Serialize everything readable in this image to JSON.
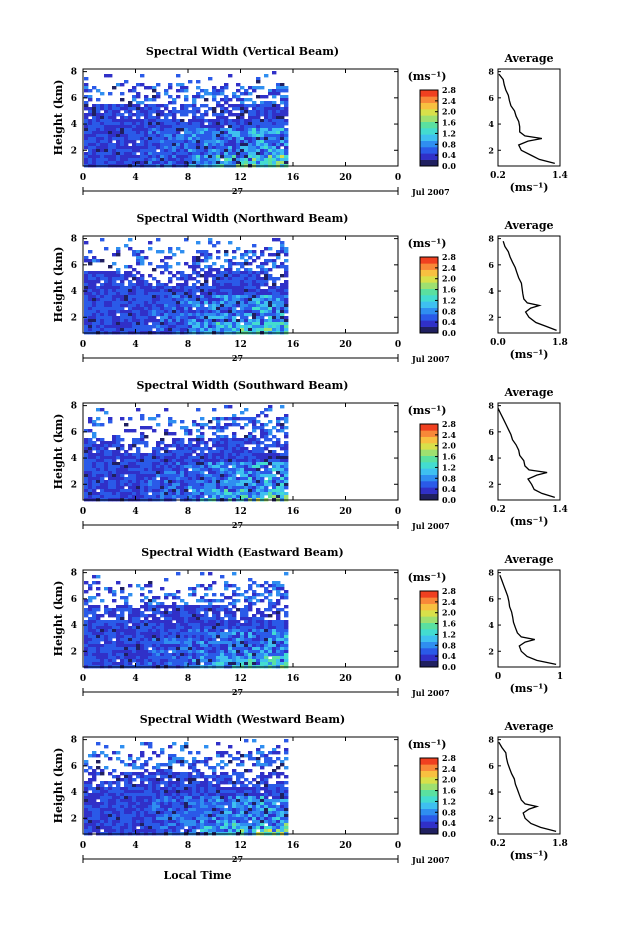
{
  "figure": {
    "common_xlabel": "Local Time",
    "date_day": "27",
    "date_month": "Jul 2007",
    "avg_xlabel": "(ms⁻¹)",
    "cbar_unit": "(ms⁻¹)",
    "avg_title": "Average"
  },
  "colormap": [
    "#202060",
    "#3030c8",
    "#2a5ae8",
    "#2f8ef0",
    "#3ec0f0",
    "#43dcd0",
    "#5ae0a0",
    "#9ee070",
    "#d8e04a",
    "#f8c040",
    "#f88838",
    "#f04020"
  ],
  "chart_data": [
    {
      "type": "heatmap",
      "title": "Spectral Width (Vertical Beam)",
      "ylabel": "Height (km)",
      "xlim": [
        0,
        24
      ],
      "ylim": [
        0.8,
        8.2
      ],
      "xticks": [
        "0",
        "4",
        "8",
        "12",
        "16",
        "20",
        "0"
      ],
      "yticks": [
        "2",
        "4",
        "6",
        "8"
      ],
      "colorbar": {
        "ticks": [
          "2.8",
          "2.4",
          "2.0",
          "1.6",
          "1.2",
          "0.8",
          "0.4",
          "0.0"
        ],
        "range": [
          0,
          2.8
        ]
      },
      "data_end_hour": 15.5,
      "average_profile": {
        "xlim": [
          0.2,
          1.4
        ],
        "xticks": [
          "0.2",
          "1.4"
        ],
        "ylim": [
          0.8,
          8.2
        ],
        "yticks": [
          "2",
          "4",
          "6",
          "8"
        ],
        "height": [
          1.0,
          1.3,
          1.6,
          2.0,
          2.4,
          2.7,
          2.9,
          3.1,
          3.4,
          3.8,
          4.2,
          4.6,
          5.0,
          5.4,
          5.8,
          6.2,
          6.6,
          7.0,
          7.4,
          7.8
        ],
        "value": [
          1.3,
          1.0,
          0.85,
          0.65,
          0.6,
          0.78,
          1.05,
          0.72,
          0.62,
          0.62,
          0.6,
          0.55,
          0.52,
          0.45,
          0.42,
          0.4,
          0.35,
          0.32,
          0.3,
          0.22
        ]
      }
    },
    {
      "type": "heatmap",
      "title": "Spectral Width (Northward Beam)",
      "ylabel": "Height (km)",
      "xlim": [
        0,
        24
      ],
      "ylim": [
        0.8,
        8.2
      ],
      "xticks": [
        "0",
        "4",
        "8",
        "12",
        "16",
        "20",
        "0"
      ],
      "yticks": [
        "2",
        "4",
        "6",
        "8"
      ],
      "colorbar": {
        "ticks": [
          "2.8",
          "2.4",
          "2.0",
          "1.6",
          "1.2",
          "0.8",
          "0.4",
          "0.0"
        ],
        "range": [
          0,
          2.8
        ]
      },
      "data_end_hour": 15.5,
      "average_profile": {
        "xlim": [
          0.0,
          1.8
        ],
        "xticks": [
          "0.0",
          "1.8"
        ],
        "ylim": [
          0.8,
          8.2
        ],
        "yticks": [
          "2",
          "4",
          "6",
          "8"
        ],
        "height": [
          1.0,
          1.3,
          1.6,
          2.0,
          2.4,
          2.7,
          2.9,
          3.1,
          3.4,
          3.8,
          4.2,
          4.6,
          5.0,
          5.4,
          5.8,
          6.2,
          6.6,
          7.0,
          7.4,
          7.8
        ],
        "value": [
          1.7,
          1.4,
          1.1,
          0.9,
          0.8,
          0.95,
          1.2,
          0.85,
          0.75,
          0.72,
          0.7,
          0.68,
          0.6,
          0.55,
          0.5,
          0.42,
          0.35,
          0.3,
          0.2,
          0.15
        ]
      }
    },
    {
      "type": "heatmap",
      "title": "Spectral Width (Southward Beam)",
      "ylabel": "Height (km)",
      "xlim": [
        0,
        24
      ],
      "ylim": [
        0.8,
        8.2
      ],
      "xticks": [
        "0",
        "4",
        "8",
        "12",
        "16",
        "20",
        "0"
      ],
      "yticks": [
        "2",
        "4",
        "6",
        "8"
      ],
      "colorbar": {
        "ticks": [
          "2.8",
          "2.4",
          "2.0",
          "1.6",
          "1.2",
          "0.8",
          "0.4",
          "0.0"
        ],
        "range": [
          0,
          2.8
        ]
      },
      "data_end_hour": 15.5,
      "average_profile": {
        "xlim": [
          0.2,
          1.4
        ],
        "xticks": [
          "0.2",
          "1.4"
        ],
        "ylim": [
          0.8,
          8.2
        ],
        "yticks": [
          "2",
          "4",
          "6",
          "8"
        ],
        "height": [
          1.0,
          1.3,
          1.6,
          2.0,
          2.4,
          2.7,
          2.9,
          3.1,
          3.4,
          3.8,
          4.2,
          4.6,
          5.0,
          5.4,
          5.8,
          6.2,
          6.6,
          7.0,
          7.4,
          7.8
        ],
        "value": [
          1.3,
          1.05,
          0.9,
          0.85,
          0.78,
          0.95,
          1.15,
          0.8,
          0.72,
          0.7,
          0.62,
          0.6,
          0.55,
          0.48,
          0.45,
          0.4,
          0.35,
          0.3,
          0.25,
          0.2
        ]
      }
    },
    {
      "type": "heatmap",
      "title": "Spectral Width (Eastward Beam)",
      "ylabel": "Height (km)",
      "xlim": [
        0,
        24
      ],
      "ylim": [
        0.8,
        8.2
      ],
      "xticks": [
        "0",
        "4",
        "8",
        "12",
        "16",
        "20",
        "0"
      ],
      "yticks": [
        "2",
        "4",
        "6",
        "8"
      ],
      "colorbar": {
        "ticks": [
          "2.8",
          "2.4",
          "2.0",
          "1.6",
          "1.2",
          "0.8",
          "0.4",
          "0.0"
        ],
        "range": [
          0,
          2.8
        ]
      },
      "data_end_hour": 15.5,
      "average_profile": {
        "xlim": [
          0.0,
          1.6
        ],
        "xticks": [
          "0",
          "1"
        ],
        "ylim": [
          0.8,
          8.2
        ],
        "yticks": [
          "2",
          "4",
          "6",
          "8"
        ],
        "height": [
          1.0,
          1.3,
          1.6,
          2.0,
          2.4,
          2.7,
          2.9,
          3.1,
          3.4,
          3.8,
          4.2,
          4.6,
          5.0,
          5.4,
          5.8,
          6.2,
          6.6,
          7.0,
          7.4,
          7.8
        ],
        "value": [
          1.5,
          1.0,
          0.75,
          0.6,
          0.55,
          0.7,
          0.95,
          0.6,
          0.5,
          0.45,
          0.4,
          0.38,
          0.35,
          0.3,
          0.28,
          0.25,
          0.2,
          0.15,
          0.1,
          0.05
        ]
      }
    },
    {
      "type": "heatmap",
      "title": "Spectral Width (Westward Beam)",
      "ylabel": "Height (km)",
      "xlim": [
        0,
        24
      ],
      "ylim": [
        0.8,
        8.2
      ],
      "xticks": [
        "0",
        "4",
        "8",
        "12",
        "16",
        "20",
        "0"
      ],
      "yticks": [
        "2",
        "4",
        "6",
        "8"
      ],
      "colorbar": {
        "ticks": [
          "2.8",
          "2.4",
          "2.0",
          "1.6",
          "1.2",
          "0.8",
          "0.4",
          "0.0"
        ],
        "range": [
          0,
          2.8
        ]
      },
      "data_end_hour": 15.5,
      "average_profile": {
        "xlim": [
          0.2,
          1.8
        ],
        "xticks": [
          "0.2",
          "1.8"
        ],
        "ylim": [
          0.8,
          8.2
        ],
        "yticks": [
          "2",
          "4",
          "6",
          "8"
        ],
        "height": [
          1.0,
          1.3,
          1.6,
          2.0,
          2.4,
          2.7,
          2.9,
          3.1,
          3.4,
          3.8,
          4.2,
          4.6,
          5.0,
          5.4,
          5.8,
          6.2,
          6.6,
          7.0,
          7.4,
          7.8
        ],
        "value": [
          1.7,
          1.3,
          1.05,
          0.9,
          0.85,
          1.0,
          1.2,
          0.9,
          0.8,
          0.75,
          0.7,
          0.65,
          0.62,
          0.55,
          0.5,
          0.45,
          0.42,
          0.4,
          0.3,
          0.22
        ]
      }
    }
  ]
}
